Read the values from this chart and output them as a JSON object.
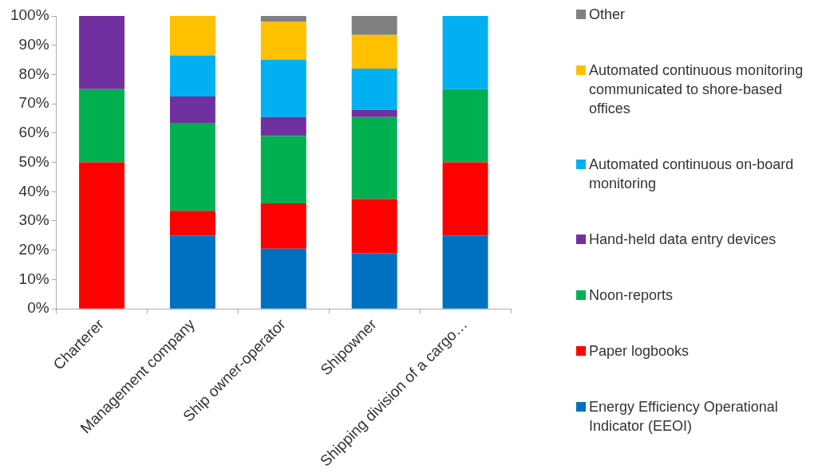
{
  "chart_data": {
    "type": "bar",
    "stacked": true,
    "categories": [
      "Charterer",
      "Management company",
      "Ship owner-operator",
      "Shipowner",
      "Shipping division of a cargo…"
    ],
    "series": [
      {
        "name": "Energy Efficiency Operational Indicator (EEOI)",
        "color": "#0070c0",
        "values": [
          0,
          25,
          20.5,
          19,
          25
        ]
      },
      {
        "name": "Paper logbooks",
        "color": "#ff0000",
        "values": [
          50,
          8.5,
          15.5,
          18.5,
          25
        ]
      },
      {
        "name": "Noon-reports",
        "color": "#00b050",
        "values": [
          25,
          30,
          23,
          28,
          25
        ]
      },
      {
        "name": "Hand-held data entry devices",
        "color": "#7030a0",
        "values": [
          25,
          9,
          6.5,
          2.5,
          0
        ]
      },
      {
        "name": "Automated continuous on-board monitoring",
        "color": "#00b0f0",
        "values": [
          0,
          14,
          19.5,
          14,
          25
        ]
      },
      {
        "name": "Automated continuous monitoring communicated to shore-based offices",
        "color": "#ffc000",
        "values": [
          0,
          13.5,
          13,
          11.5,
          0
        ]
      },
      {
        "name": "Other",
        "color": "#808080",
        "values": [
          0,
          0,
          2,
          6.5,
          0
        ]
      }
    ],
    "ylim": [
      0,
      100
    ],
    "yticks": [
      {
        "value": 0,
        "label": "0%"
      },
      {
        "value": 10,
        "label": "10%"
      },
      {
        "value": 20,
        "label": "20%"
      },
      {
        "value": 30,
        "label": "30%"
      },
      {
        "value": 40,
        "label": "40%"
      },
      {
        "value": 50,
        "label": "50%"
      },
      {
        "value": 60,
        "label": "60%"
      },
      {
        "value": 70,
        "label": "70%"
      },
      {
        "value": 80,
        "label": "80%"
      },
      {
        "value": 90,
        "label": "90%"
      },
      {
        "value": 100,
        "label": "100%"
      }
    ],
    "grid": false,
    "legend": "right"
  }
}
